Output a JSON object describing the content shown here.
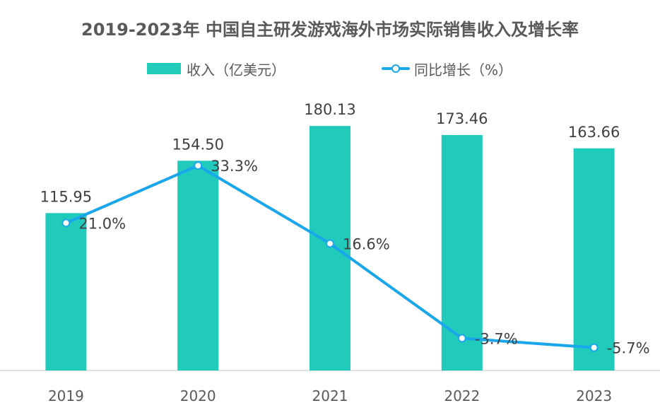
{
  "colors": {
    "bar": "#20cbbc",
    "line": "#1aa6ea",
    "axis": "#d9d9d9"
  },
  "chart_data": {
    "type": "bar",
    "title": "2019-2023年 中国自主研发游戏海外市场实际销售收入及增长率",
    "categories": [
      "2019",
      "2020",
      "2021",
      "2022",
      "2023"
    ],
    "series": [
      {
        "name": "收入（亿美元）",
        "type": "bar",
        "values": [
          115.95,
          154.5,
          180.13,
          173.46,
          163.66
        ],
        "labels": [
          "115.95",
          "154.50",
          "180.13",
          "173.46",
          "163.66"
        ]
      },
      {
        "name": "同比增长（%）",
        "type": "line",
        "values": [
          21.0,
          33.3,
          16.6,
          -3.7,
          -5.7
        ],
        "labels": [
          "21.0%",
          "33.3%",
          "16.6%",
          "-3.7%",
          "-5.7%"
        ]
      }
    ],
    "legend": "top-center",
    "grid": false,
    "ylim_bar": [
      0,
      200
    ],
    "ylim_line": [
      -10,
      40
    ]
  }
}
